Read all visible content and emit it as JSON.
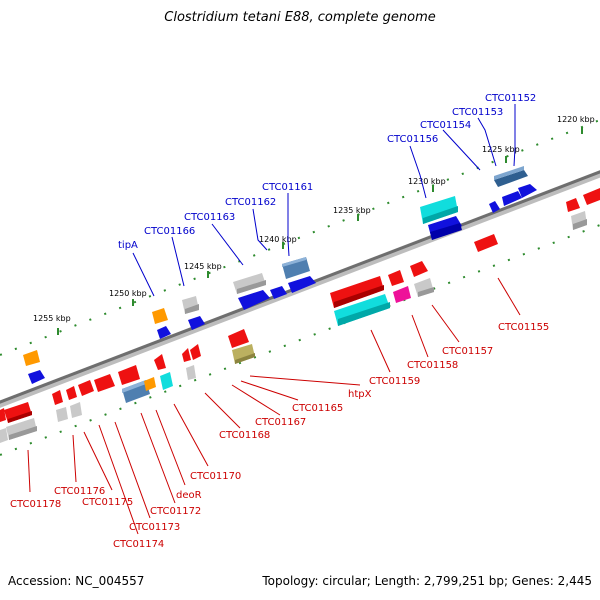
{
  "title": "Clostridium tetani E88, complete genome",
  "footer": {
    "accession": "Accession: NC_004557",
    "stats": "Topology: circular; Length: 2,799,251 bp; Genes: 2,445"
  },
  "ticks": [
    "1220 kbp",
    "1225 kbp",
    "1230 kbp",
    "1235 kbp",
    "1240 kbp",
    "1245 kbp",
    "1250 kbp",
    "1255 kbp"
  ],
  "labels_top": [
    "CTC01152",
    "CTC01153",
    "CTC01154",
    "CTC01156",
    "CTC01161",
    "CTC01162",
    "CTC01163",
    "CTC01166",
    "tipA"
  ],
  "labels_bottom": [
    "CTC01155",
    "CTC01157",
    "CTC01158",
    "CTC01159",
    "htpX",
    "CTC01165",
    "CTC01167",
    "CTC01168",
    "CTC01170",
    "deoR",
    "CTC01172",
    "CTC01173",
    "CTC01174",
    "CTC01175",
    "CTC01176",
    "CTC01178"
  ],
  "colors": {
    "backbone": "#7a7a7a",
    "track_dots": "#2e8b2e",
    "label_forward": "#0000cc",
    "label_reverse": "#cc0000",
    "gene_red": "#ee1111",
    "gene_blue": "#1111dd",
    "gene_grey": "#bbbbbb",
    "gene_cyan": "#11dddd",
    "gene_steel": "#4f7fb0",
    "gene_orange": "#ff9900",
    "gene_magenta": "#ee1199",
    "gene_khaki": "#bbb060"
  }
}
